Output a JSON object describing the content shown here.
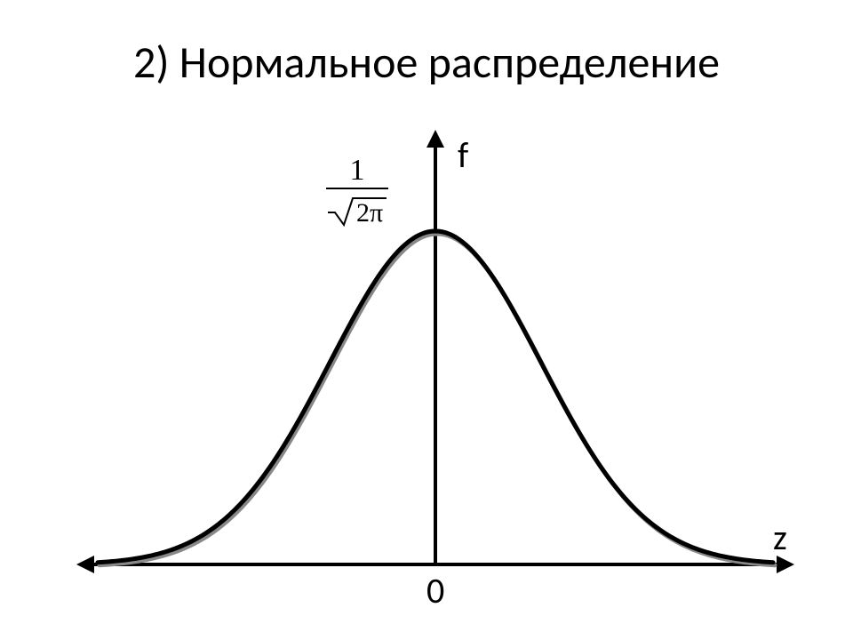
{
  "title": "2) Нормальное распределение",
  "chart": {
    "type": "line",
    "background_color": "#ffffff",
    "curve_color": "#000000",
    "curve_shadow_color": "#888888",
    "axis_color": "#000000",
    "axis_stroke_width": 4,
    "curve_stroke_width": 5,
    "x_axis": {
      "label": "z",
      "origin_label": "0",
      "range": [
        -3.2,
        3.2
      ]
    },
    "y_axis": {
      "label": "f",
      "peak_value_label_numerator": "1",
      "peak_value_label_denominator": "2π",
      "peak_value_approx": 0.3989
    },
    "label_fontsize": 40,
    "formula_fontsize": 34,
    "font_family_title": "Calibri",
    "font_family_formula": "Times New Roman"
  }
}
